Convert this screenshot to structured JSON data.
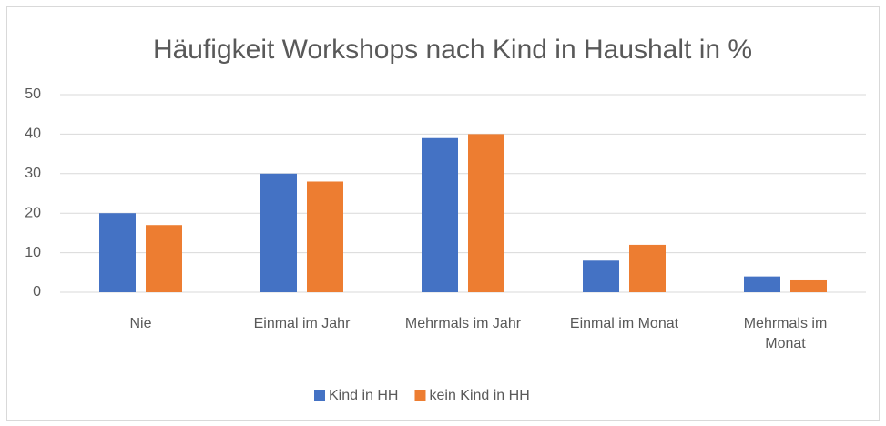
{
  "chart_data": {
    "type": "bar",
    "title": "Häufigkeit Workshops nach Kind in Haushalt in %",
    "categories": [
      "Nie",
      "Einmal im Jahr",
      "Mehrmals im Jahr",
      "Einmal im Monat",
      "Mehrmals im Monat"
    ],
    "series": [
      {
        "name": "Kind in HH",
        "color": "#4472c4",
        "values": [
          20,
          30,
          39,
          8,
          4
        ]
      },
      {
        "name": "kein Kind in HH",
        "color": "#ed7d31",
        "values": [
          17,
          28,
          40,
          12,
          3
        ]
      }
    ],
    "ylim": [
      0,
      50
    ],
    "yticks": [
      0,
      10,
      20,
      30,
      40,
      50
    ],
    "grid": true,
    "legend": "bottom"
  }
}
